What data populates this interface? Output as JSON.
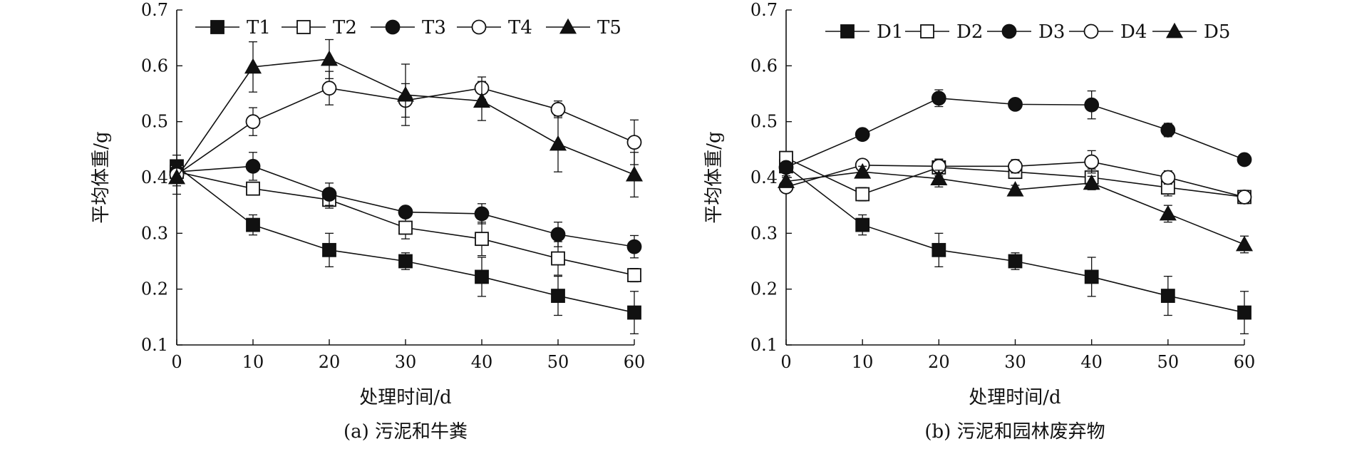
{
  "chart_data": [
    {
      "type": "line",
      "caption": "(a) 污泥和牛粪",
      "xlabel": "处理时间/d",
      "ylabel": "平均体重/g",
      "x": [
        0,
        10,
        20,
        30,
        40,
        50,
        60
      ],
      "xlim": [
        0,
        60
      ],
      "ylim": [
        0.1,
        0.7
      ],
      "xticks": [
        "0",
        "10",
        "20",
        "30",
        "40",
        "50",
        "60"
      ],
      "yticks": [
        "0.1",
        "0.2",
        "0.3",
        "0.4",
        "0.5",
        "0.6",
        "0.7"
      ],
      "grid": false,
      "legend_position": "top",
      "series": [
        {
          "name": "T1",
          "marker": "square-filled",
          "values": [
            0.42,
            0.315,
            0.27,
            0.25,
            0.222,
            0.188,
            0.158
          ],
          "errors": [
            0.02,
            0.018,
            0.03,
            0.015,
            0.035,
            0.035,
            0.038
          ]
        },
        {
          "name": "T2",
          "marker": "square-open",
          "values": [
            0.41,
            0.38,
            0.36,
            0.31,
            0.29,
            0.255,
            0.225
          ],
          "errors": [
            0.02,
            0.01,
            0.015,
            0.02,
            0.03,
            0.03,
            0.012
          ]
        },
        {
          "name": "T3",
          "marker": "circle-filled",
          "values": [
            0.41,
            0.42,
            0.37,
            0.338,
            0.335,
            0.298,
            0.276
          ],
          "errors": [
            0.02,
            0.025,
            0.02,
            0.005,
            0.018,
            0.022,
            0.02
          ]
        },
        {
          "name": "T4",
          "marker": "circle-open",
          "values": [
            0.405,
            0.5,
            0.56,
            0.538,
            0.56,
            0.522,
            0.463
          ],
          "errors": [
            0.02,
            0.025,
            0.03,
            0.03,
            0.02,
            0.015,
            0.04
          ]
        },
        {
          "name": "T5",
          "marker": "triangle-filled",
          "values": [
            0.4,
            0.598,
            0.612,
            0.548,
            0.537,
            0.46,
            0.405
          ],
          "errors": [
            0.03,
            0.045,
            0.035,
            0.055,
            0.035,
            0.05,
            0.04
          ]
        }
      ]
    },
    {
      "type": "line",
      "caption": "(b) 污泥和园林废弃物",
      "xlabel": "处理时间/d",
      "ylabel": "平均体重/g",
      "x": [
        0,
        10,
        20,
        30,
        40,
        50,
        60
      ],
      "xlim": [
        0,
        60
      ],
      "ylim": [
        0.1,
        0.7
      ],
      "xticks": [
        "0",
        "10",
        "20",
        "30",
        "40",
        "50",
        "60"
      ],
      "yticks": [
        "0.1",
        "0.2",
        "0.3",
        "0.4",
        "0.5",
        "0.6",
        "0.7"
      ],
      "grid": false,
      "legend_position": "top",
      "series": [
        {
          "name": "D1",
          "marker": "square-filled",
          "values": [
            0.42,
            0.315,
            0.27,
            0.25,
            0.222,
            0.188,
            0.158
          ],
          "errors": [
            0.02,
            0.018,
            0.03,
            0.015,
            0.035,
            0.035,
            0.038
          ]
        },
        {
          "name": "D2",
          "marker": "square-open",
          "values": [
            0.435,
            0.37,
            0.418,
            0.41,
            0.4,
            0.382,
            0.365
          ],
          "errors": [
            0.01,
            0.012,
            0.015,
            0.01,
            0.015,
            0.015,
            0.01
          ]
        },
        {
          "name": "D3",
          "marker": "circle-filled",
          "values": [
            0.418,
            0.477,
            0.542,
            0.531,
            0.53,
            0.485,
            0.432
          ],
          "errors": [
            0.01,
            0.008,
            0.015,
            0.005,
            0.025,
            0.012,
            0.005
          ]
        },
        {
          "name": "D4",
          "marker": "circle-open",
          "values": [
            0.383,
            0.422,
            0.42,
            0.42,
            0.428,
            0.4,
            0.365
          ],
          "errors": [
            0.01,
            0.01,
            0.012,
            0.012,
            0.02,
            0.012,
            0.012
          ]
        },
        {
          "name": "D5",
          "marker": "triangle-filled",
          "values": [
            0.393,
            0.41,
            0.398,
            0.378,
            0.39,
            0.335,
            0.28
          ],
          "errors": [
            0.01,
            0.01,
            0.015,
            0.008,
            0.012,
            0.015,
            0.015
          ]
        }
      ]
    }
  ]
}
